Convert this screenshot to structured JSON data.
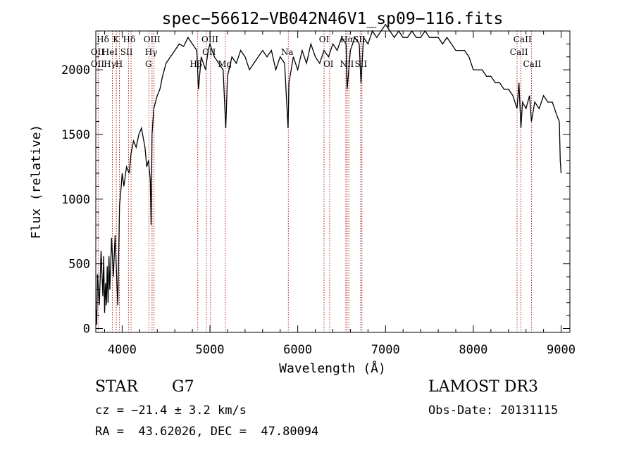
{
  "chart_data": {
    "type": "line",
    "title": "spec−56612−VB042N46V1_sp09−116.fits",
    "xlabel": "Wavelength (Å)",
    "ylabel": "Flux (relative)",
    "xlim": [
      3700,
      9100
    ],
    "ylim": [
      -30,
      2300
    ],
    "xticks": [
      4000,
      5000,
      6000,
      7000,
      8000,
      9000
    ],
    "xtick_labels": [
      "4000",
      "5000",
      "6000",
      "7000",
      "8000",
      "9000"
    ],
    "yticks": [
      0,
      500,
      1000,
      1500,
      2000
    ],
    "ytick_labels": [
      "0",
      "500",
      "1000",
      "1500",
      "2000"
    ],
    "grid": false,
    "series": [
      {
        "x": [
          3700,
          3710,
          3720,
          3740,
          3760,
          3780,
          3790,
          3800,
          3810,
          3820,
          3830,
          3840,
          3850,
          3860,
          3880,
          3900,
          3920,
          3950,
          3970,
          3990,
          4000,
          4020,
          4050,
          4080,
          4100,
          4130,
          4160,
          4190,
          4220,
          4260,
          4280,
          4300,
          4320,
          4330,
          4340,
          4360,
          4400,
          4430,
          4460,
          4500,
          4550,
          4600,
          4650,
          4700,
          4750,
          4800,
          4850,
          4870,
          4900,
          4950,
          4980,
          5000,
          5050,
          5100,
          5150,
          5180,
          5200,
          5250,
          5300,
          5350,
          5400,
          5450,
          5500,
          5550,
          5600,
          5650,
          5700,
          5750,
          5800,
          5850,
          5890,
          5900,
          5950,
          6000,
          6050,
          6100,
          6150,
          6200,
          6250,
          6300,
          6350,
          6400,
          6450,
          6500,
          6550,
          6563,
          6600,
          6650,
          6700,
          6720,
          6750,
          6800,
          6850,
          6900,
          6950,
          7000,
          7050,
          7100,
          7150,
          7200,
          7250,
          7300,
          7350,
          7400,
          7450,
          7500,
          7550,
          7600,
          7650,
          7700,
          7750,
          7800,
          7850,
          7900,
          7950,
          8000,
          8050,
          8100,
          8150,
          8200,
          8250,
          8300,
          8350,
          8400,
          8450,
          8498,
          8520,
          8542,
          8560,
          8600,
          8640,
          8662,
          8700,
          8750,
          8800,
          8850,
          8900,
          8950,
          8980,
          8990,
          9000
        ],
        "y": [
          150,
          30,
          420,
          180,
          600,
          250,
          560,
          120,
          350,
          180,
          480,
          200,
          560,
          300,
          700,
          400,
          720,
          180,
          950,
          1100,
          1200,
          1100,
          1250,
          1200,
          1350,
          1450,
          1400,
          1500,
          1550,
          1400,
          1250,
          1300,
          1150,
          800,
          1500,
          1700,
          1800,
          1850,
          1950,
          2050,
          2100,
          2150,
          2200,
          2180,
          2250,
          2200,
          2150,
          1850,
          2100,
          2000,
          2150,
          2200,
          2100,
          2050,
          2000,
          1550,
          1950,
          2100,
          2050,
          2150,
          2100,
          2000,
          2050,
          2100,
          2150,
          2100,
          2150,
          2000,
          2100,
          2050,
          1550,
          1900,
          2100,
          2000,
          2150,
          2050,
          2200,
          2100,
          2050,
          2150,
          2100,
          2200,
          2150,
          2250,
          2200,
          1850,
          2150,
          2250,
          2200,
          1900,
          2250,
          2200,
          2300,
          2250,
          2300,
          2350,
          2300,
          2250,
          2300,
          2250,
          2250,
          2300,
          2250,
          2250,
          2300,
          2250,
          2250,
          2250,
          2200,
          2250,
          2200,
          2150,
          2150,
          2150,
          2100,
          2000,
          2000,
          2000,
          1950,
          1950,
          1900,
          1900,
          1850,
          1850,
          1800,
          1700,
          1900,
          1550,
          1750,
          1700,
          1800,
          1600,
          1750,
          1700,
          1800,
          1750,
          1750,
          1650,
          1600,
          1300,
          1200
        ]
      }
    ],
    "lines": [
      {
        "name": "CaII K",
        "x": 3934
      },
      {
        "name": "CaII H",
        "x": 3969
      },
      {
        "name": "OII",
        "x": 3727
      },
      {
        "name": "HeI",
        "x": 3889
      },
      {
        "name": "SII",
        "x": 4072
      },
      {
        "name": "Hδ",
        "x": 4102
      },
      {
        "name": "G",
        "x": 4305
      },
      {
        "name": "Hγ",
        "x": 4341
      },
      {
        "name": "OIII",
        "x": 4363
      },
      {
        "name": "Hβ",
        "x": 4861
      },
      {
        "name": "OIII",
        "x": 4959
      },
      {
        "name": "OIII",
        "x": 5007
      },
      {
        "name": "Mg",
        "x": 5175
      },
      {
        "name": "Na",
        "x": 5893
      },
      {
        "name": "OI",
        "x": 6300
      },
      {
        "name": "OI",
        "x": 6364
      },
      {
        "name": "NII",
        "x": 6548
      },
      {
        "name": "Hα",
        "x": 6563
      },
      {
        "name": "NII",
        "x": 6583
      },
      {
        "name": "SII",
        "x": 6717
      },
      {
        "name": "SII",
        "x": 6731
      },
      {
        "name": "CaII",
        "x": 8498
      },
      {
        "name": "CaII",
        "x": 8542
      },
      {
        "name": "CaII",
        "x": 8662
      }
    ],
    "line_labels": [
      {
        "text": "Hδ",
        "x": 3780,
        "row": 1
      },
      {
        "text": "K",
        "x": 3930,
        "row": 1
      },
      {
        "text": "Hδ",
        "x": 4080,
        "row": 1
      },
      {
        "text": "OII",
        "x": 3720,
        "row": 2
      },
      {
        "text": "HeI",
        "x": 3860,
        "row": 2
      },
      {
        "text": "SII",
        "x": 4050,
        "row": 2
      },
      {
        "text": "OII",
        "x": 3720,
        "row": 3
      },
      {
        "text": "Hγ",
        "x": 3860,
        "row": 3
      },
      {
        "text": "H",
        "x": 3965,
        "row": 3
      },
      {
        "text": "OIII",
        "x": 4340,
        "row": 1
      },
      {
        "text": "Hγ",
        "x": 4330,
        "row": 2
      },
      {
        "text": "G",
        "x": 4300,
        "row": 3
      },
      {
        "text": "OIII",
        "x": 5000,
        "row": 1
      },
      {
        "text": "OII",
        "x": 4990,
        "row": 2
      },
      {
        "text": "Hβ",
        "x": 4840,
        "row": 3
      },
      {
        "text": "Mg",
        "x": 5170,
        "row": 3
      },
      {
        "text": "Na",
        "x": 5880,
        "row": 2
      },
      {
        "text": "OI",
        "x": 6300,
        "row": 1
      },
      {
        "text": "OI",
        "x": 6350,
        "row": 3
      },
      {
        "text": "Hα",
        "x": 6560,
        "row": 1
      },
      {
        "text": "SII",
        "x": 6700,
        "row": 1
      },
      {
        "text": "NII",
        "x": 6560,
        "row": 3
      },
      {
        "text": "SII",
        "x": 6720,
        "row": 3
      },
      {
        "text": "CaII",
        "x": 8560,
        "row": 1
      },
      {
        "text": "CaII",
        "x": 8520,
        "row": 2
      },
      {
        "text": "CaII",
        "x": 8670,
        "row": 3
      }
    ]
  },
  "info": {
    "object_class": "STAR",
    "subclass": "G7",
    "survey": "LAMOST DR3",
    "cz": "cz = −21.4 ± 3.2 km/s",
    "obs_date": "Obs-Date: 20131115",
    "coords": "RA =  43.62026, DEC =  47.80094"
  },
  "colors": {
    "spectrum": "#000000",
    "line_markers": "#b22222",
    "background": "#ffffff"
  }
}
